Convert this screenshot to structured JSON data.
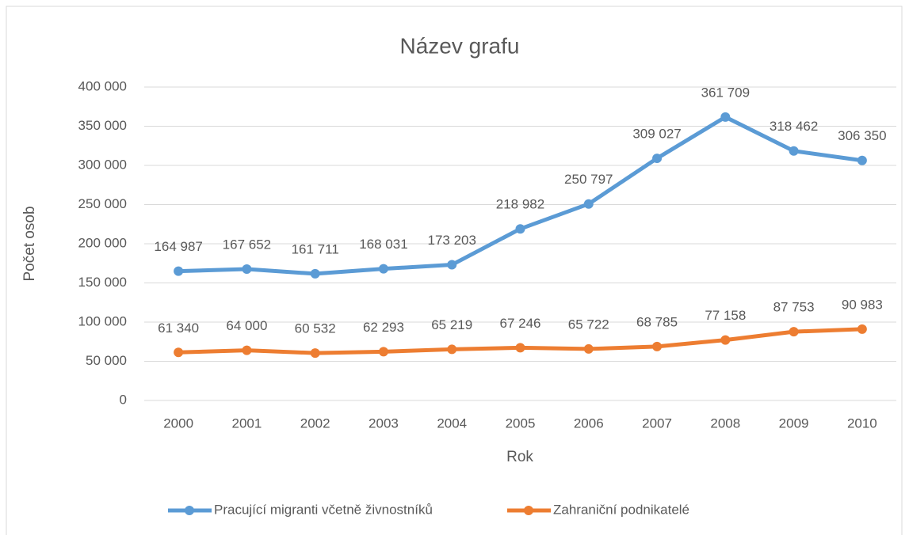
{
  "chart_data": {
    "type": "line",
    "title": "Název grafu",
    "x_label": "Rok",
    "y_label": "Počet osob",
    "categories": [
      "2000",
      "2001",
      "2002",
      "2003",
      "2004",
      "2005",
      "2006",
      "2007",
      "2008",
      "2009",
      "2010"
    ],
    "series": [
      {
        "name": "Pracující migranti včetně živnostníků",
        "color": "#5b9bd5",
        "values": [
          164987,
          167652,
          161711,
          168031,
          173203,
          218982,
          250797,
          309027,
          361709,
          318462,
          306350
        ],
        "value_labels": [
          "164 987",
          "167 652",
          "161 711",
          "168 031",
          "173 203",
          "218 982",
          "250 797",
          "309 027",
          "361 709",
          "318 462",
          "306 350"
        ]
      },
      {
        "name": "Zahraniční podnikatelé",
        "color": "#ed7d31",
        "values": [
          61340,
          64000,
          60532,
          62293,
          65219,
          67246,
          65722,
          68785,
          77158,
          87753,
          90983
        ],
        "value_labels": [
          "61 340",
          "64 000",
          "60 532",
          "62 293",
          "65 219",
          "67 246",
          "65 722",
          "68 785",
          "77 158",
          "87 753",
          "90 983"
        ]
      }
    ],
    "ylim": [
      0,
      400000
    ],
    "yticks": [
      0,
      {
        "value": 50000,
        "label": "50 000"
      },
      {
        "value": 100000,
        "label": "100 000"
      },
      {
        "value": 150000,
        "label": "150 000"
      },
      {
        "value": 200000,
        "label": "200 000"
      },
      {
        "value": 250000,
        "label": "250 000"
      },
      {
        "value": 300000,
        "label": "300 000"
      },
      {
        "value": 350000,
        "label": "350 000"
      },
      {
        "value": 400000,
        "label": "400 000"
      }
    ],
    "grid": true,
    "legend": "bottom"
  }
}
